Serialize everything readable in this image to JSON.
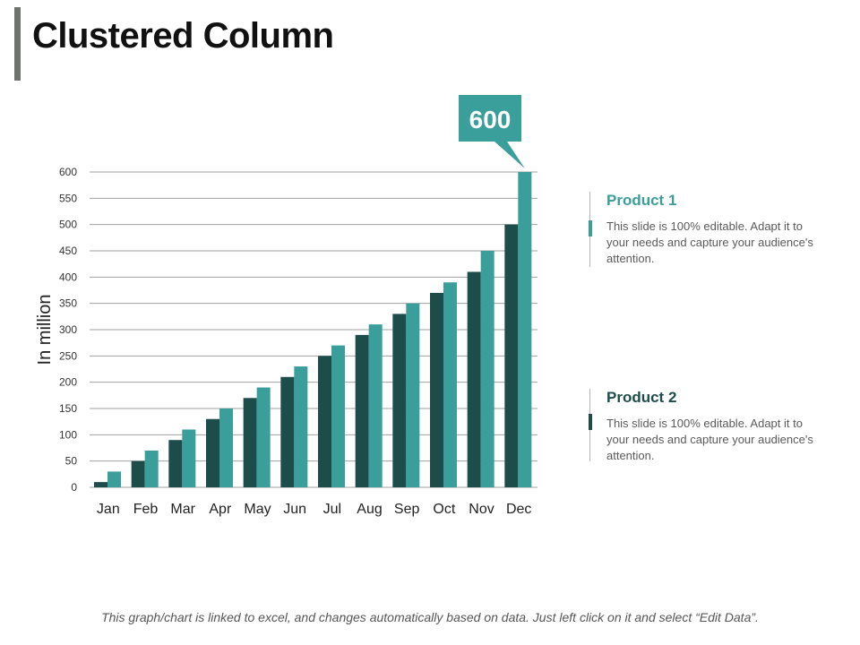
{
  "slide": {
    "title": "Clustered Column",
    "footer": "This graph/chart is linked to excel, and changes automatically based on data. Just left click on it and select “Edit Data”."
  },
  "colors": {
    "product1": "#3a9e9b",
    "product2": "#1d4d4b",
    "callout": "#3a9e9b",
    "grid": "#a0a0a0"
  },
  "legend": {
    "items": [
      {
        "name": "Product 1",
        "desc": "This slide is 100% editable. Adapt it to your needs and capture your audience's attention."
      },
      {
        "name": "Product 2",
        "desc": "This slide is 100% editable. Adapt it to your needs and capture your audience's attention."
      }
    ]
  },
  "chart_data": {
    "type": "bar",
    "title": "",
    "xlabel": "",
    "ylabel": "In million",
    "ylim": [
      0,
      600
    ],
    "yticks": [
      0,
      50,
      100,
      150,
      200,
      250,
      300,
      350,
      400,
      450,
      500,
      550,
      600
    ],
    "grid": true,
    "categories": [
      "Jan",
      "Feb",
      "Mar",
      "Apr",
      "May",
      "Jun",
      "Jul",
      "Aug",
      "Sep",
      "Oct",
      "Nov",
      "Dec"
    ],
    "series": [
      {
        "name": "Product 2",
        "color": "#1d4d4b",
        "values": [
          10,
          50,
          90,
          130,
          170,
          210,
          250,
          290,
          330,
          370,
          410,
          500
        ]
      },
      {
        "name": "Product 1",
        "color": "#3a9e9b",
        "values": [
          30,
          70,
          110,
          150,
          190,
          230,
          270,
          310,
          350,
          390,
          450,
          600
        ]
      }
    ],
    "annotation": {
      "label": "600",
      "series": "Product 1",
      "category": "Dec"
    }
  }
}
